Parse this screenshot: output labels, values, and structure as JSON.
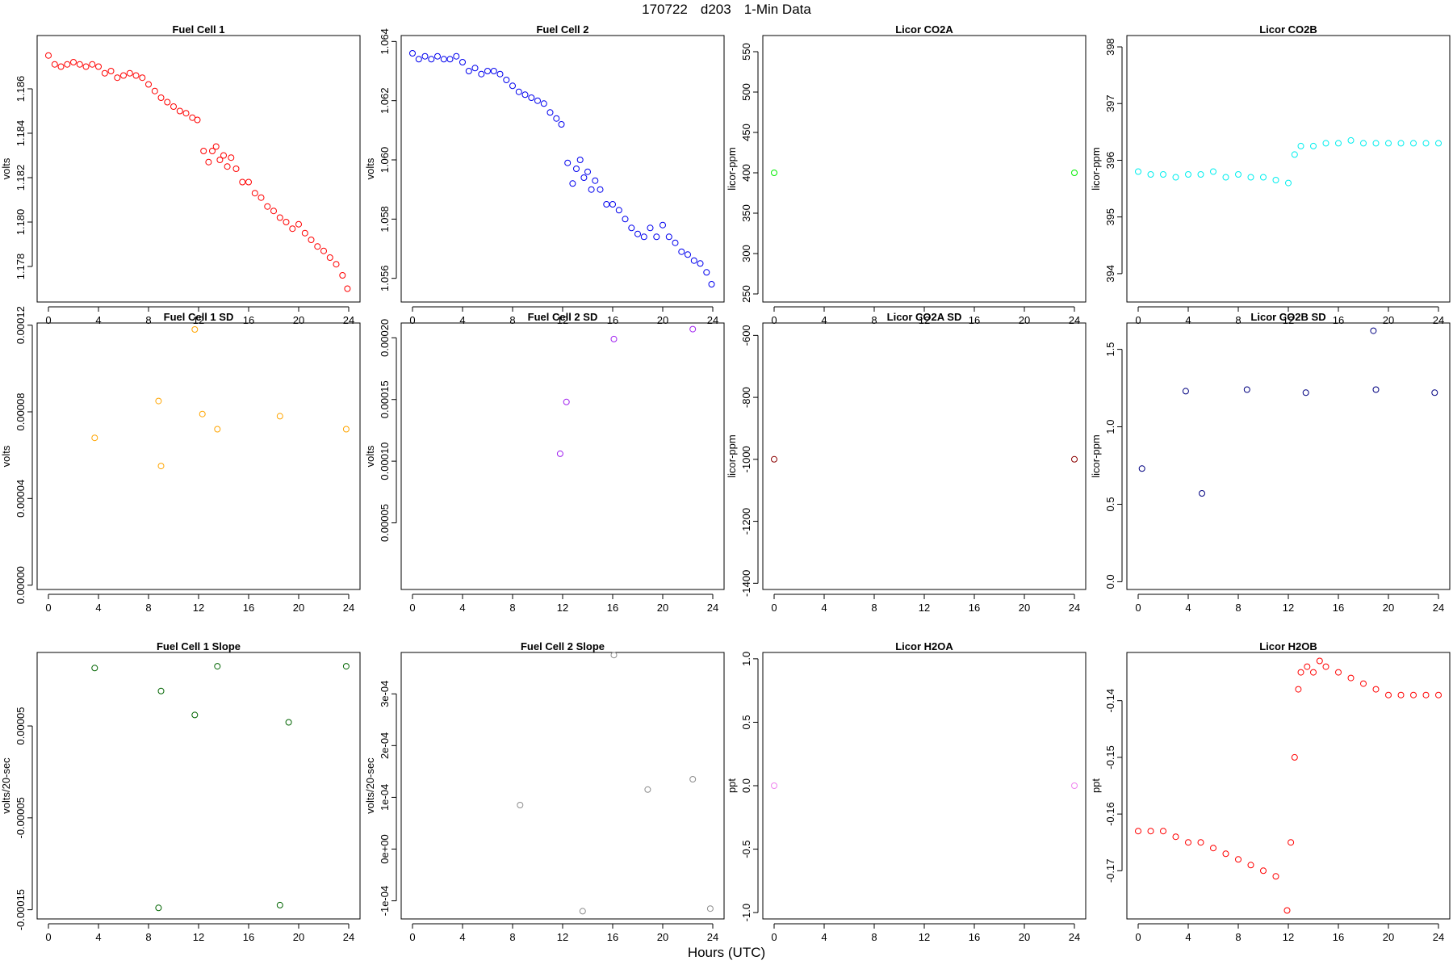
{
  "header": {
    "date": "170722",
    "site": "d203",
    "resolution": "1-Min Data"
  },
  "xlabel": "Hours (UTC)",
  "chart_data": [
    {
      "type": "scatter",
      "title": "Fuel Cell 1",
      "ylabel": "volts",
      "color": "#ff0000",
      "xlim": [
        0,
        24
      ],
      "ylim": [
        1.1764,
        1.1884
      ],
      "xticks": [
        0,
        4,
        8,
        12,
        16,
        20,
        24
      ],
      "yticks": [
        1.178,
        1.18,
        1.182,
        1.184,
        1.186
      ],
      "ytick_labels": [
        "1.178",
        "1.180",
        "1.182",
        "1.184",
        "1.186"
      ],
      "x": [
        0,
        0.5,
        1,
        1.5,
        2,
        2.5,
        3,
        3.5,
        4,
        4.5,
        5,
        5.5,
        6,
        6.5,
        7,
        7.5,
        8,
        8.5,
        9,
        9.5,
        10,
        10.5,
        11,
        11.5,
        11.9,
        12.4,
        12.8,
        13.1,
        13.4,
        13.7,
        14,
        14.3,
        14.6,
        15,
        15.5,
        16,
        16.5,
        17,
        17.5,
        18,
        18.5,
        19,
        19.5,
        20,
        20.5,
        21,
        21.5,
        22,
        22.5,
        23,
        23.5,
        23.9
      ],
      "y": [
        1.1875,
        1.1871,
        1.187,
        1.1871,
        1.1872,
        1.1871,
        1.187,
        1.1871,
        1.187,
        1.1867,
        1.1868,
        1.1865,
        1.1866,
        1.1867,
        1.1866,
        1.1865,
        1.1862,
        1.1859,
        1.1856,
        1.1854,
        1.1852,
        1.185,
        1.1849,
        1.1847,
        1.1846,
        1.1832,
        1.1827,
        1.1832,
        1.1834,
        1.1828,
        1.183,
        1.1825,
        1.1829,
        1.1824,
        1.1818,
        1.1818,
        1.1813,
        1.1811,
        1.1807,
        1.1805,
        1.1802,
        1.18,
        1.1797,
        1.1799,
        1.1795,
        1.1792,
        1.1789,
        1.1787,
        1.1784,
        1.1781,
        1.1776,
        1.177
      ]
    },
    {
      "type": "scatter",
      "title": "Fuel Cell 2",
      "ylabel": "volts",
      "color": "#0000ee",
      "xlim": [
        0,
        24
      ],
      "ylim": [
        1.0552,
        1.0642
      ],
      "xticks": [
        0,
        4,
        8,
        12,
        16,
        20,
        24
      ],
      "yticks": [
        1.056,
        1.058,
        1.06,
        1.062,
        1.064
      ],
      "ytick_labels": [
        "1.056",
        "1.058",
        "1.060",
        "1.062",
        "1.064"
      ],
      "x": [
        0,
        0.5,
        1,
        1.5,
        2,
        2.5,
        3,
        3.5,
        4,
        4.5,
        5,
        5.5,
        6,
        6.5,
        7,
        7.5,
        8,
        8.5,
        9,
        9.5,
        10,
        10.5,
        11,
        11.5,
        11.9,
        12.4,
        12.8,
        13.1,
        13.4,
        13.7,
        14,
        14.3,
        14.6,
        15,
        15.5,
        16,
        16.5,
        17,
        17.5,
        18,
        18.5,
        19,
        19.5,
        20,
        20.5,
        21,
        21.5,
        22,
        22.5,
        23,
        23.5,
        23.9
      ],
      "y": [
        1.0636,
        1.0634,
        1.0635,
        1.0634,
        1.0635,
        1.0634,
        1.0634,
        1.0635,
        1.0633,
        1.063,
        1.0631,
        1.0629,
        1.063,
        1.063,
        1.0629,
        1.0627,
        1.0625,
        1.0623,
        1.0622,
        1.0621,
        1.062,
        1.0619,
        1.0616,
        1.0614,
        1.0612,
        1.0599,
        1.0592,
        1.0597,
        1.06,
        1.0594,
        1.0596,
        1.059,
        1.0593,
        1.059,
        1.0585,
        1.0585,
        1.0583,
        1.058,
        1.0577,
        1.0575,
        1.0574,
        1.0577,
        1.0574,
        1.0578,
        1.0574,
        1.0572,
        1.0569,
        1.0568,
        1.0566,
        1.0565,
        1.0562,
        1.0558
      ]
    },
    {
      "type": "scatter",
      "title": "Licor CO2A",
      "ylabel": "licor-ppm",
      "color": "#00ee00",
      "xlim": [
        0,
        24
      ],
      "ylim": [
        240,
        570
      ],
      "xticks": [
        0,
        4,
        8,
        12,
        16,
        20,
        24
      ],
      "yticks": [
        250,
        300,
        350,
        400,
        450,
        500,
        550
      ],
      "ytick_labels": [
        "250",
        "300",
        "350",
        "400",
        "450",
        "500",
        "550"
      ],
      "x": [
        0,
        24
      ],
      "y": [
        400,
        400
      ]
    },
    {
      "type": "scatter",
      "title": "Licor CO2B",
      "ylabel": "licor-ppm",
      "color": "#00eeee",
      "xlim": [
        0,
        24
      ],
      "ylim": [
        393.5,
        398.2
      ],
      "xticks": [
        0,
        4,
        8,
        12,
        16,
        20,
        24
      ],
      "yticks": [
        394,
        395,
        396,
        397,
        398
      ],
      "ytick_labels": [
        "394",
        "395",
        "396",
        "397",
        "398"
      ],
      "x": [
        0,
        1,
        2,
        3,
        4,
        5,
        6,
        7,
        8,
        9,
        10,
        11,
        12,
        12.5,
        13,
        14,
        15,
        16,
        17,
        18,
        19,
        20,
        21,
        22,
        23,
        24
      ],
      "y": [
        395.8,
        395.75,
        395.75,
        395.7,
        395.75,
        395.75,
        395.8,
        395.7,
        395.75,
        395.7,
        395.7,
        395.65,
        395.6,
        396.1,
        396.25,
        396.25,
        396.3,
        396.3,
        396.35,
        396.3,
        396.3,
        396.3,
        396.3,
        396.3,
        396.3,
        396.3
      ]
    },
    {
      "type": "scatter",
      "title": "Fuel Cell 1 SD",
      "ylabel": "volts",
      "color": "#ffa500",
      "xlim": [
        0,
        24
      ],
      "ylim": [
        -2e-06,
        0.000121
      ],
      "xticks": [
        0,
        4,
        8,
        12,
        16,
        20,
        24
      ],
      "yticks": [
        0,
        4e-05,
        8e-05,
        0.00012
      ],
      "ytick_labels": [
        "0.00000",
        "0.00004",
        "0.00008",
        "0.00012"
      ],
      "x": [
        3.7,
        8.8,
        9.0,
        11.7,
        12.3,
        13.5,
        18.5,
        23.8
      ],
      "y": [
        6.8e-05,
        8.5e-05,
        5.5e-05,
        0.000118,
        7.9e-05,
        7.2e-05,
        7.8e-05,
        7.2e-05
      ]
    },
    {
      "type": "scatter",
      "title": "Fuel Cell 2 SD",
      "ylabel": "volts",
      "color": "#a020f0",
      "xlim": [
        0,
        24
      ],
      "ylim": [
        -4e-06,
        0.000212
      ],
      "xticks": [
        0,
        4,
        8,
        12,
        16,
        20,
        24
      ],
      "yticks": [
        5e-05,
        0.0001,
        0.00015,
        0.0002
      ],
      "ytick_labels": [
        "0.00005",
        "0.00010",
        "0.00015",
        "0.00020"
      ],
      "x": [
        11.8,
        12.3,
        16.1,
        22.4
      ],
      "y": [
        0.000106,
        0.000148,
        0.000199,
        0.000207
      ]
    },
    {
      "type": "scatter",
      "title": "Licor CO2A SD",
      "ylabel": "licor-ppm",
      "color": "#8b0000",
      "xlim": [
        0,
        24
      ],
      "ylim": [
        -1420,
        -560
      ],
      "xticks": [
        0,
        4,
        8,
        12,
        16,
        20,
        24
      ],
      "yticks": [
        -1400,
        -1200,
        -1000,
        -800,
        -600
      ],
      "ytick_labels": [
        "-1400",
        "-1200",
        "-1000",
        "-800",
        "-600"
      ],
      "x": [
        0,
        24
      ],
      "y": [
        -1000,
        -1000
      ]
    },
    {
      "type": "scatter",
      "title": "Licor CO2B SD",
      "ylabel": "licor-ppm",
      "color": "#000080",
      "xlim": [
        0,
        24
      ],
      "ylim": [
        -0.05,
        1.67
      ],
      "xticks": [
        0,
        4,
        8,
        12,
        16,
        20,
        24
      ],
      "yticks": [
        0,
        0.5,
        1.0,
        1.5
      ],
      "ytick_labels": [
        "0.0",
        "0.5",
        "1.0",
        "1.5"
      ],
      "x": [
        0.3,
        3.8,
        5.1,
        8.7,
        13.4,
        18.8,
        19.0,
        23.7
      ],
      "y": [
        0.73,
        1.23,
        0.57,
        1.24,
        1.22,
        1.62,
        1.24,
        1.22
      ]
    },
    {
      "type": "scatter",
      "title": "Fuel Cell 1 Slope",
      "ylabel": "volts/20-sec",
      "color": "#006400",
      "xlim": [
        0,
        24
      ],
      "ylim": [
        -0.00016,
        0.00013
      ],
      "xticks": [
        0,
        4,
        8,
        12,
        16,
        20,
        24
      ],
      "yticks": [
        -0.00015,
        -5e-05,
        5e-05
      ],
      "ytick_labels": [
        "-0.00015",
        "-0.00005",
        "0.00005"
      ],
      "x": [
        3.7,
        8.8,
        9.0,
        11.7,
        13.5,
        18.5,
        19.2,
        23.8
      ],
      "y": [
        0.000113,
        -0.000148,
        8.8e-05,
        6.2e-05,
        0.000115,
        -0.000145,
        5.4e-05,
        0.000115
      ]
    },
    {
      "type": "scatter",
      "title": "Fuel Cell 2 Slope",
      "ylabel": "volts/20-sec",
      "color": "#8c8c8c",
      "xlim": [
        0,
        24
      ],
      "ylim": [
        -0.000135,
        0.00038
      ],
      "xticks": [
        0,
        4,
        8,
        12,
        16,
        20,
        24
      ],
      "yticks": [
        -0.0001,
        0,
        0.0001,
        0.0002,
        0.0003
      ],
      "ytick_labels": [
        "-1e-04",
        "0e+00",
        "1e-04",
        "2e-04",
        "3e-04"
      ],
      "x": [
        8.6,
        13.6,
        16.1,
        18.8,
        22.4,
        23.8
      ],
      "y": [
        8.5e-05,
        -0.00012,
        0.000375,
        0.000115,
        0.000135,
        -0.000115
      ]
    },
    {
      "type": "scatter",
      "title": "Licor H2OA",
      "ylabel": "ppt",
      "color": "#ee82ee",
      "xlim": [
        0,
        24
      ],
      "ylim": [
        -1.05,
        1.05
      ],
      "xticks": [
        0,
        4,
        8,
        12,
        16,
        20,
        24
      ],
      "yticks": [
        -1.0,
        -0.5,
        0,
        0.5,
        1.0
      ],
      "ytick_labels": [
        "-1.0",
        "-0.5",
        "0.0",
        "0.5",
        "1.0"
      ],
      "x": [
        0,
        24
      ],
      "y": [
        0,
        0
      ]
    },
    {
      "type": "scatter",
      "title": "Licor H2OB",
      "ylabel": "ppt",
      "color": "#ff0000",
      "xlim": [
        0,
        24
      ],
      "ylim": [
        -0.1785,
        -0.1315
      ],
      "xticks": [
        0,
        4,
        8,
        12,
        16,
        20,
        24
      ],
      "yticks": [
        -0.17,
        -0.16,
        -0.15,
        -0.14
      ],
      "ytick_labels": [
        "-0.17",
        "-0.16",
        "-0.15",
        "-0.14"
      ],
      "x": [
        0,
        1,
        2,
        3,
        4,
        5,
        6,
        7,
        8,
        9,
        10,
        11,
        11.9,
        12.2,
        12.5,
        12.8,
        13,
        13.5,
        14,
        14.5,
        15,
        16,
        17,
        18,
        19,
        20,
        21,
        22,
        23,
        24
      ],
      "y": [
        -0.163,
        -0.163,
        -0.163,
        -0.164,
        -0.165,
        -0.165,
        -0.166,
        -0.167,
        -0.168,
        -0.169,
        -0.17,
        -0.171,
        -0.177,
        -0.165,
        -0.15,
        -0.138,
        -0.135,
        -0.134,
        -0.135,
        -0.133,
        -0.134,
        -0.135,
        -0.136,
        -0.137,
        -0.138,
        -0.139,
        -0.139,
        -0.139,
        -0.139,
        -0.139
      ]
    }
  ]
}
